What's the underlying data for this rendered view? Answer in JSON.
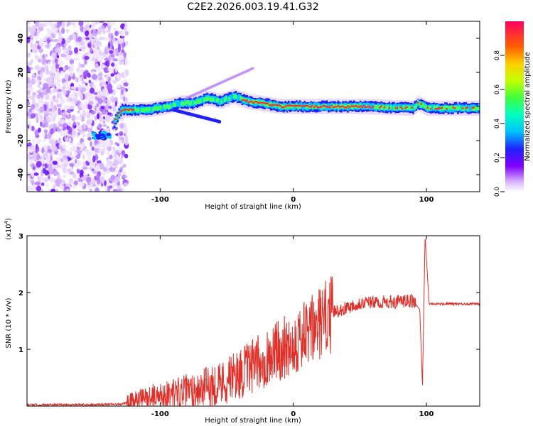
{
  "title": "C2E2.2026.003.19.41.G32",
  "chart_data": [
    {
      "type": "heatmap",
      "xlabel": "Height of straight line (km)",
      "ylabel": "Frequency (Hz)",
      "xlim": [
        -200,
        140
      ],
      "ylim": [
        -50,
        50
      ],
      "xticks": [
        -100,
        0,
        100
      ],
      "yticks": [
        -40,
        -20,
        0,
        20,
        40
      ],
      "ridge": [
        {
          "x": -150,
          "y": -17
        },
        {
          "x": -140,
          "y": -17
        },
        {
          "x": -130,
          "y": -2
        },
        {
          "x": -110,
          "y": -2
        },
        {
          "x": -95,
          "y": 0
        },
        {
          "x": -85,
          "y": 2
        },
        {
          "x": -75,
          "y": 2
        },
        {
          "x": -65,
          "y": 5
        },
        {
          "x": -55,
          "y": 3
        },
        {
          "x": -45,
          "y": 6
        },
        {
          "x": -35,
          "y": 3
        },
        {
          "x": -25,
          "y": 2
        },
        {
          "x": -10,
          "y": 0
        },
        {
          "x": 10,
          "y": 0
        },
        {
          "x": 50,
          "y": 0
        },
        {
          "x": 90,
          "y": -1
        },
        {
          "x": 93,
          "y": 2
        },
        {
          "x": 100,
          "y": -1
        },
        {
          "x": 140,
          "y": -1
        }
      ],
      "colorbar": {
        "label": "Normalized spectral amplitude",
        "range": [
          0,
          1
        ],
        "ticks": [
          0.0,
          0.2,
          0.4,
          0.6,
          0.8
        ]
      }
    },
    {
      "type": "line",
      "xlabel": "Height of straight line (km)",
      "ylabel": "SNR (10 * v/v)",
      "multiplier_label": "(x10",
      "multiplier_exp": "4",
      "multiplier_close": ")",
      "xlim": [
        -200,
        140
      ],
      "ylim": [
        0,
        3
      ],
      "xticks": [
        -100,
        0,
        100
      ],
      "yticks": [
        1,
        2,
        3
      ],
      "trend": [
        {
          "x": -200,
          "y": 0.02
        },
        {
          "x": -130,
          "y": 0.03
        },
        {
          "x": -110,
          "y": 0.15
        },
        {
          "x": -90,
          "y": 0.22
        },
        {
          "x": -70,
          "y": 0.3
        },
        {
          "x": -50,
          "y": 0.45
        },
        {
          "x": -30,
          "y": 0.7
        },
        {
          "x": -10,
          "y": 1.0
        },
        {
          "x": 10,
          "y": 1.25
        },
        {
          "x": 20,
          "y": 1.45
        },
        {
          "x": 30,
          "y": 1.65
        },
        {
          "x": 50,
          "y": 1.82
        },
        {
          "x": 70,
          "y": 1.83
        },
        {
          "x": 90,
          "y": 1.85
        },
        {
          "x": 95,
          "y": 1.7
        },
        {
          "x": 97,
          "y": 0.35
        },
        {
          "x": 99,
          "y": 3.0
        },
        {
          "x": 102,
          "y": 1.8
        },
        {
          "x": 140,
          "y": 1.8
        }
      ]
    }
  ]
}
